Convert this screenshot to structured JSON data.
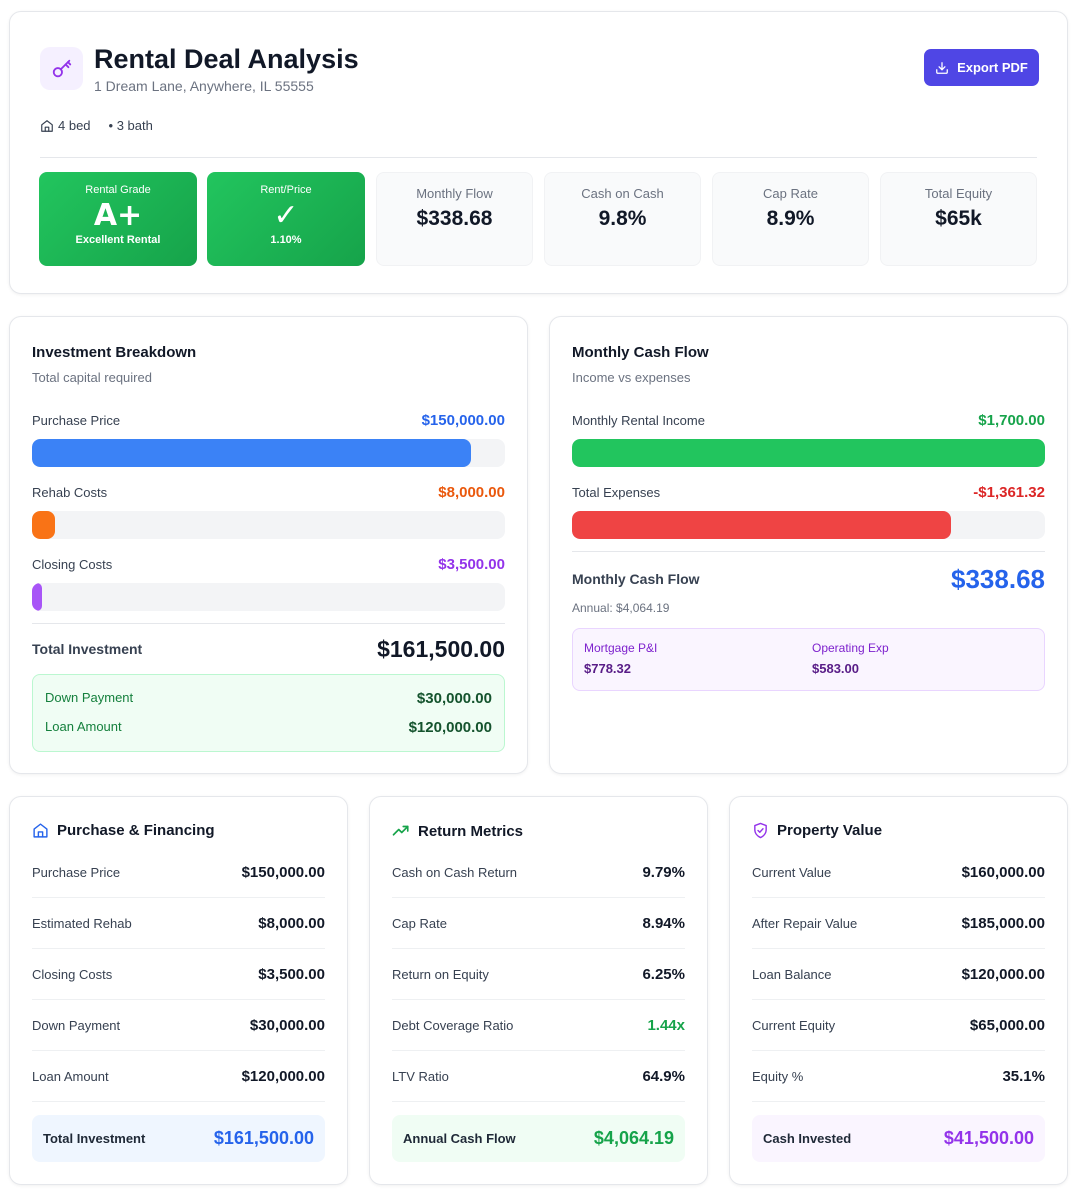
{
  "header": {
    "title": "Rental Deal Analysis",
    "address": "1 Dream Lane, Anywhere, IL 55555",
    "export_label": "Export PDF",
    "beds": "4 bed",
    "baths": "• 3 bath",
    "icons": {
      "logo": "key-icon",
      "export": "download-icon",
      "beds": "home-icon"
    }
  },
  "grades": [
    {
      "label": "Rental Grade",
      "value": "A+",
      "sub": "Excellent Rental"
    },
    {
      "label": "Rent/Price",
      "value": "✓",
      "sub": "1.10%"
    }
  ],
  "metrics": [
    {
      "label": "Monthly Flow",
      "value": "$338.68"
    },
    {
      "label": "Cash on Cash",
      "value": "9.8%"
    },
    {
      "label": "Cap Rate",
      "value": "8.9%"
    },
    {
      "label": "Total Equity",
      "value": "$65k"
    }
  ],
  "investment": {
    "title": "Investment Breakdown",
    "subtitle": "Total capital required",
    "rows": [
      {
        "label": "Purchase Price",
        "value": "$150,000.00",
        "fraction": 0.9288,
        "color": "#3b82f6",
        "text_color": "#2563eb"
      },
      {
        "label": "Rehab Costs",
        "value": "$8,000.00",
        "fraction": 0.0495,
        "color": "#f97316",
        "text_color": "#ea580c"
      },
      {
        "label": "Closing Costs",
        "value": "$3,500.00",
        "fraction": 0.0217,
        "color": "#a855f7",
        "text_color": "#9333ea"
      }
    ],
    "total_label": "Total Investment",
    "total_value": "$161,500.00",
    "down_label": "Down Payment",
    "down_value": "$30,000.00",
    "loan_label": "Loan Amount",
    "loan_value": "$120,000.00"
  },
  "cashflow": {
    "title": "Monthly Cash Flow",
    "subtitle": "Income vs expenses",
    "rows": [
      {
        "label": "Monthly Rental Income",
        "value": "$1,700.00",
        "fraction": 1.0,
        "color": "#22c55e",
        "text_color": "#16a34a"
      },
      {
        "label": "Total Expenses",
        "value": "-$1,361.32",
        "fraction": 0.8008,
        "color": "#ef4444",
        "text_color": "#dc2626"
      }
    ],
    "flow_label": "Monthly Cash Flow",
    "flow_value": "$338.68",
    "annual": "Annual: $4,064.19",
    "mortgage_label": "Mortgage P&I",
    "mortgage_value": "$778.32",
    "opex_label": "Operating Exp",
    "opex_value": "$583.00"
  },
  "financing": {
    "title": "Purchase & Financing",
    "icon": "home-icon",
    "rows": [
      {
        "label": "Purchase Price",
        "value": "$150,000.00"
      },
      {
        "label": "Estimated Rehab",
        "value": "$8,000.00"
      },
      {
        "label": "Closing Costs",
        "value": "$3,500.00"
      },
      {
        "label": "Down Payment",
        "value": "$30,000.00"
      },
      {
        "label": "Loan Amount",
        "value": "$120,000.00"
      }
    ],
    "foot_label": "Total Investment",
    "foot_value": "$161,500.00"
  },
  "returns": {
    "title": "Return Metrics",
    "icon": "trending-up-icon",
    "rows": [
      {
        "label": "Cash on Cash Return",
        "value": "9.79%"
      },
      {
        "label": "Cap Rate",
        "value": "8.94%"
      },
      {
        "label": "Return on Equity",
        "value": "6.25%"
      },
      {
        "label": "Debt Coverage Ratio",
        "value": "1.44x"
      },
      {
        "label": "LTV Ratio",
        "value": "64.9%"
      }
    ],
    "foot_label": "Annual Cash Flow",
    "foot_value": "$4,064.19"
  },
  "property": {
    "title": "Property Value",
    "icon": "shield-check-icon",
    "rows": [
      {
        "label": "Current Value",
        "value": "$160,000.00"
      },
      {
        "label": "After Repair Value",
        "value": "$185,000.00"
      },
      {
        "label": "Loan Balance",
        "value": "$120,000.00"
      },
      {
        "label": "Current Equity",
        "value": "$65,000.00"
      },
      {
        "label": "Equity %",
        "value": "35.1%"
      }
    ],
    "foot_label": "Cash Invested",
    "foot_value": "$41,500.00"
  },
  "colors": {
    "accent": "#4f46e5",
    "positive": "#16a34a",
    "negative": "#dc2626",
    "blue": "#2563eb",
    "purple": "#9333ea"
  }
}
